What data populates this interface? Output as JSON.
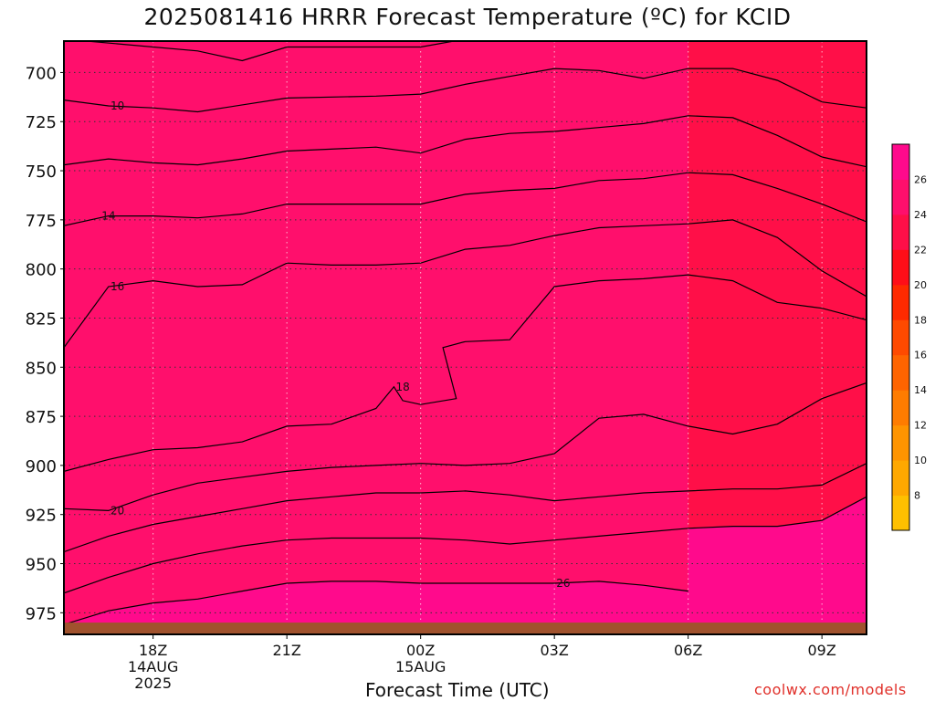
{
  "chart_data": {
    "type": "filled-contour",
    "title": "2025081416 HRRR Forecast Temperature (ºC) for KCID",
    "xlabel": "Forecast Time (UTC)",
    "ylabel": "",
    "credit": "coolwx.com/models",
    "x_ticks": [
      {
        "label": "18Z",
        "sub": [
          "14AUG",
          "2025"
        ],
        "hour": 2
      },
      {
        "label": "21Z",
        "sub": [],
        "hour": 5
      },
      {
        "label": "00Z",
        "sub": [
          "15AUG"
        ],
        "hour": 8
      },
      {
        "label": "03Z",
        "sub": [],
        "hour": 11
      },
      {
        "label": "06Z",
        "sub": [],
        "hour": 14
      },
      {
        "label": "09Z",
        "sub": [],
        "hour": 17
      }
    ],
    "x_range_hours": [
      0,
      18
    ],
    "y_ticks": [
      700,
      725,
      750,
      775,
      800,
      825,
      850,
      875,
      900,
      925,
      950,
      975
    ],
    "y_range_hpa": [
      684,
      986
    ],
    "surface_hpa": 980,
    "grid": true,
    "colorbar": {
      "levels": [
        6,
        8,
        10,
        12,
        14,
        16,
        18,
        20,
        22,
        24,
        26,
        28
      ],
      "tick_labels": [
        "8",
        "10",
        "12",
        "14",
        "16",
        "18",
        "20",
        "22",
        "24",
        "26"
      ],
      "colors": [
        "#ffc000",
        "#ffa800",
        "#ff9400",
        "#ff7c00",
        "#ff6400",
        "#ff4a00",
        "#ff2a00",
        "#ff0e18",
        "#ff0f48",
        "#ff0f6c",
        "#ff0a8c"
      ]
    },
    "contours": [
      {
        "value": 8,
        "label": null,
        "points": [
          [
            0,
            683
          ],
          [
            3,
            689
          ],
          [
            4,
            694
          ],
          [
            5,
            687
          ],
          [
            8,
            687
          ],
          [
            9,
            683
          ],
          [
            18,
            683
          ]
        ]
      },
      {
        "value": 10,
        "label": "10",
        "points": [
          [
            0,
            714
          ],
          [
            1,
            717
          ],
          [
            2,
            718
          ],
          [
            3,
            720
          ],
          [
            5,
            713
          ],
          [
            7,
            712
          ],
          [
            8,
            711
          ],
          [
            9,
            706
          ],
          [
            10,
            702
          ],
          [
            11,
            698
          ],
          [
            12,
            699
          ],
          [
            13,
            703
          ],
          [
            14,
            698
          ],
          [
            15,
            698
          ],
          [
            16,
            704
          ],
          [
            17,
            715
          ],
          [
            18,
            718
          ]
        ]
      },
      {
        "value": 12,
        "label": null,
        "points": [
          [
            0,
            747
          ],
          [
            1,
            744
          ],
          [
            2,
            746
          ],
          [
            3,
            747
          ],
          [
            4,
            744
          ],
          [
            5,
            740
          ],
          [
            7,
            738
          ],
          [
            8,
            741
          ],
          [
            9,
            734
          ],
          [
            10,
            731
          ],
          [
            11,
            730
          ],
          [
            12,
            728
          ],
          [
            13,
            726
          ],
          [
            14,
            722
          ],
          [
            15,
            723
          ],
          [
            16,
            732
          ],
          [
            17,
            743
          ],
          [
            18,
            748
          ]
        ]
      },
      {
        "value": 14,
        "label": "14",
        "points": [
          [
            0,
            778
          ],
          [
            1,
            773
          ],
          [
            2,
            773
          ],
          [
            3,
            774
          ],
          [
            4,
            772
          ],
          [
            5,
            767
          ],
          [
            6,
            767
          ],
          [
            7,
            767
          ],
          [
            8,
            767
          ],
          [
            9,
            762
          ],
          [
            10,
            760
          ],
          [
            11,
            759
          ],
          [
            12,
            755
          ],
          [
            13,
            754
          ],
          [
            14,
            751
          ],
          [
            15,
            752
          ],
          [
            16,
            759
          ],
          [
            17,
            767
          ],
          [
            18,
            776
          ]
        ]
      },
      {
        "value": 16,
        "label": "16",
        "points": [
          [
            0,
            840
          ],
          [
            1,
            809
          ],
          [
            2,
            806
          ],
          [
            3,
            809
          ],
          [
            4,
            808
          ],
          [
            5,
            797
          ],
          [
            6,
            798
          ],
          [
            7,
            798
          ],
          [
            8,
            797
          ],
          [
            9,
            790
          ],
          [
            10,
            788
          ],
          [
            11,
            783
          ],
          [
            12,
            779
          ],
          [
            13,
            778
          ],
          [
            14,
            777
          ],
          [
            15,
            775
          ],
          [
            16,
            784
          ],
          [
            17,
            801
          ],
          [
            18,
            814
          ]
        ]
      },
      {
        "value": 18,
        "label": "18",
        "points": [
          [
            0,
            903
          ],
          [
            1,
            897
          ],
          [
            2,
            892
          ],
          [
            3,
            891
          ],
          [
            4,
            888
          ],
          [
            5,
            880
          ],
          [
            6,
            879
          ],
          [
            7,
            871
          ],
          [
            7.4,
            860
          ],
          [
            7.6,
            867
          ],
          [
            8,
            869
          ],
          [
            8.8,
            866
          ],
          [
            8.5,
            840
          ],
          [
            9,
            837
          ],
          [
            10,
            836
          ],
          [
            11,
            809
          ],
          [
            12,
            806
          ],
          [
            13,
            805
          ],
          [
            14,
            803
          ],
          [
            15,
            806
          ],
          [
            16,
            817
          ],
          [
            17,
            820
          ],
          [
            18,
            826
          ]
        ]
      },
      {
        "value": 20,
        "label": "20",
        "points": [
          [
            0,
            922
          ],
          [
            1,
            923
          ],
          [
            2,
            915
          ],
          [
            3,
            909
          ],
          [
            4,
            906
          ],
          [
            5,
            903
          ],
          [
            6,
            901
          ],
          [
            7,
            900
          ],
          [
            8,
            899
          ],
          [
            9,
            900
          ],
          [
            10,
            899
          ],
          [
            11,
            894
          ],
          [
            12,
            876
          ],
          [
            13,
            874
          ],
          [
            14,
            880
          ],
          [
            15,
            884
          ],
          [
            16,
            879
          ],
          [
            17,
            866
          ],
          [
            18,
            858
          ]
        ]
      },
      {
        "value": 22,
        "label": null,
        "points": [
          [
            0,
            944
          ],
          [
            1,
            936
          ],
          [
            2,
            930
          ],
          [
            3,
            926
          ],
          [
            4,
            922
          ],
          [
            5,
            918
          ],
          [
            6,
            916
          ],
          [
            7,
            914
          ],
          [
            8,
            914
          ],
          [
            9,
            913
          ],
          [
            10,
            915
          ],
          [
            11,
            918
          ],
          [
            12,
            916
          ],
          [
            13,
            914
          ],
          [
            14,
            913
          ],
          [
            15,
            912
          ],
          [
            16,
            912
          ],
          [
            17,
            910
          ],
          [
            18,
            899
          ]
        ]
      },
      {
        "value": 24,
        "label": null,
        "points": [
          [
            0,
            965
          ],
          [
            1,
            957
          ],
          [
            2,
            950
          ],
          [
            3,
            945
          ],
          [
            4,
            941
          ],
          [
            5,
            938
          ],
          [
            6,
            937
          ],
          [
            7,
            937
          ],
          [
            8,
            937
          ],
          [
            9,
            938
          ],
          [
            10,
            940
          ],
          [
            11,
            938
          ],
          [
            12,
            936
          ],
          [
            13,
            934
          ],
          [
            14,
            932
          ],
          [
            15,
            931
          ],
          [
            16,
            931
          ],
          [
            17,
            928
          ],
          [
            18,
            916
          ]
        ]
      },
      {
        "value": 26,
        "label": "26",
        "points": [
          [
            0,
            981
          ],
          [
            1,
            974
          ],
          [
            2,
            970
          ],
          [
            3,
            968
          ],
          [
            4,
            964
          ],
          [
            5,
            960
          ],
          [
            6,
            959
          ],
          [
            7,
            959
          ],
          [
            8,
            960
          ],
          [
            9,
            960
          ],
          [
            10,
            960
          ],
          [
            11,
            960
          ],
          [
            12,
            959
          ],
          [
            13,
            961
          ],
          [
            14,
            964
          ]
        ]
      }
    ]
  }
}
